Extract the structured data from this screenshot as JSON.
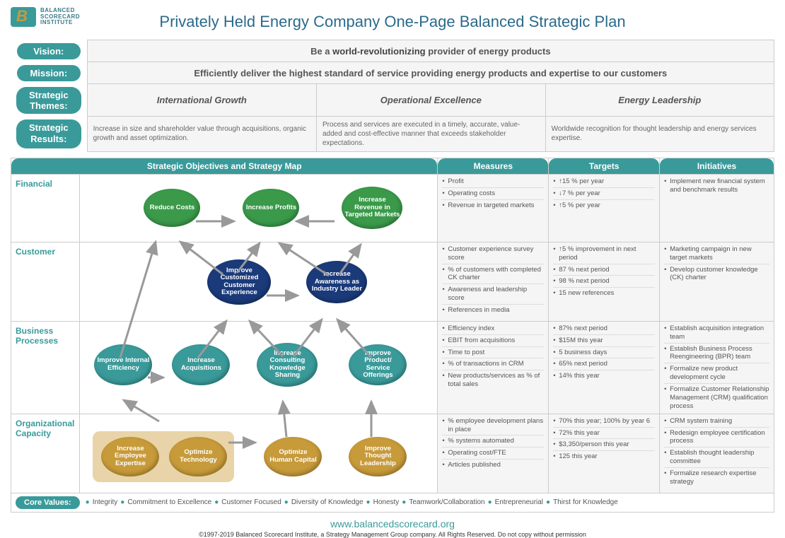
{
  "logo": {
    "line1": "Balanced",
    "line2": "Scorecard",
    "line3": "Institute"
  },
  "title": "Privately Held Energy Company One-Page Balanced Strategic Plan",
  "header": {
    "vision_label": "Vision:",
    "vision_text": "Be a world-revolutionizing provider of energy products",
    "mission_label": "Mission:",
    "mission_text": "Efficiently deliver the highest standard of service providing energy products and expertise to our customers",
    "themes_label": "Strategic Themes:",
    "themes": [
      "International Growth",
      "Operational Excellence",
      "Energy Leadership"
    ],
    "results_label": "Strategic Results:",
    "results": [
      "Increase in size and shareholder value through acquisitions, organic growth and asset optimization.",
      "Process and services are executed in a timely, accurate, value-added and cost-effective manner that exceeds stakeholder expectations.",
      "Worldwide recognition for thought leadership and energy services expertise."
    ]
  },
  "columns": {
    "map": "Strategic Objectives and Strategy Map",
    "measures": "Measures",
    "targets": "Targets",
    "initiatives": "Initiatives"
  },
  "perspectives": [
    "Financial",
    "Customer",
    "Business Processes",
    "Organizational Capacity"
  ],
  "ovals": {
    "reduce_costs": "Reduce Costs",
    "increase_profits": "Increase Profits",
    "increase_revenue": "Increase Revenue in Targeted Markets",
    "improve_cx": "Improve Customized Customer Experience",
    "increase_awareness": "Increase Awareness as Industry Leader",
    "improve_efficiency": "Improve Internal Efficiency",
    "increase_acq": "Increase Acquisitions",
    "increase_consulting": "Increase Consulting Knowledge Sharing",
    "improve_offerings": "Improve Product/ Service Offerings",
    "increase_expertise": "Increase Employee Expertise",
    "optimize_tech": "Optimize Technology",
    "optimize_hc": "Optimize Human Capital",
    "improve_thought": "Improve Thought Leadership"
  },
  "colors": {
    "teal": "#3a9a9a",
    "green": "#3a9a4a",
    "navy": "#1a3a7a",
    "gold": "#c79a3a",
    "gold_box": "#e8d4a8",
    "grid": "#cccccc",
    "bg_light": "#f5f5f5",
    "text": "#555555"
  },
  "rows": {
    "financial": {
      "measures": [
        "Profit",
        "Operating costs",
        "Revenue in targeted markets"
      ],
      "targets": [
        "↑15 % per year",
        "↓7 % per year",
        "↑5 % per year"
      ],
      "initiatives": [
        "Implement new financial system and benchmark results"
      ]
    },
    "customer": {
      "measures": [
        "Customer experience survey score",
        "% of customers with completed CK charter",
        "Awareness and leadership score",
        "References in media"
      ],
      "targets": [
        "↑5 % improvement in next period",
        "87 % next period",
        "98 % next period",
        "15 new references"
      ],
      "initiatives": [
        "Marketing campaign in new target markets",
        "Develop customer knowledge (CK) charter"
      ]
    },
    "business": {
      "measures": [
        "Efficiency index",
        "EBIT from acquisitions",
        "Time to post",
        "% of transactions in CRM",
        "New products/services as % of total sales"
      ],
      "targets": [
        "87% next period",
        "$15M this year",
        "5 business days",
        "65% next period",
        "14% this year"
      ],
      "initiatives": [
        "Establish acquisition integration team",
        "Establish Business Process Reengineering (BPR) team",
        "Formalize new product development cycle",
        "Formalize Customer Relationship Management (CRM) qualification process"
      ]
    },
    "organizational": {
      "measures": [
        "% employee development plans in place",
        "% systems automated",
        "Operating cost/FTE",
        "Articles published"
      ],
      "targets": [
        "70% this year; 100% by year 6",
        "72% this year",
        "$3,350/person this year",
        "125 this year"
      ],
      "initiatives": [
        "CRM system training",
        "Redesign employee certification process",
        "Establish thought leadership committee",
        "Formalize research expertise strategy"
      ]
    }
  },
  "core_values_label": "Core Values:",
  "core_values": [
    "Integrity",
    "Commitment to Excellence",
    "Customer Focused",
    "Diversity of Knowledge",
    "Honesty",
    "Teamwork/Collaboration",
    "Entrepreneurial",
    "Thirst for Knowledge"
  ],
  "footer_url": "www.balancedscorecard.org",
  "footer_copy": "©1997-2019 Balanced Scorecard Institute, a Strategy Management Group company. All Rights Reserved. Do not copy without permission"
}
